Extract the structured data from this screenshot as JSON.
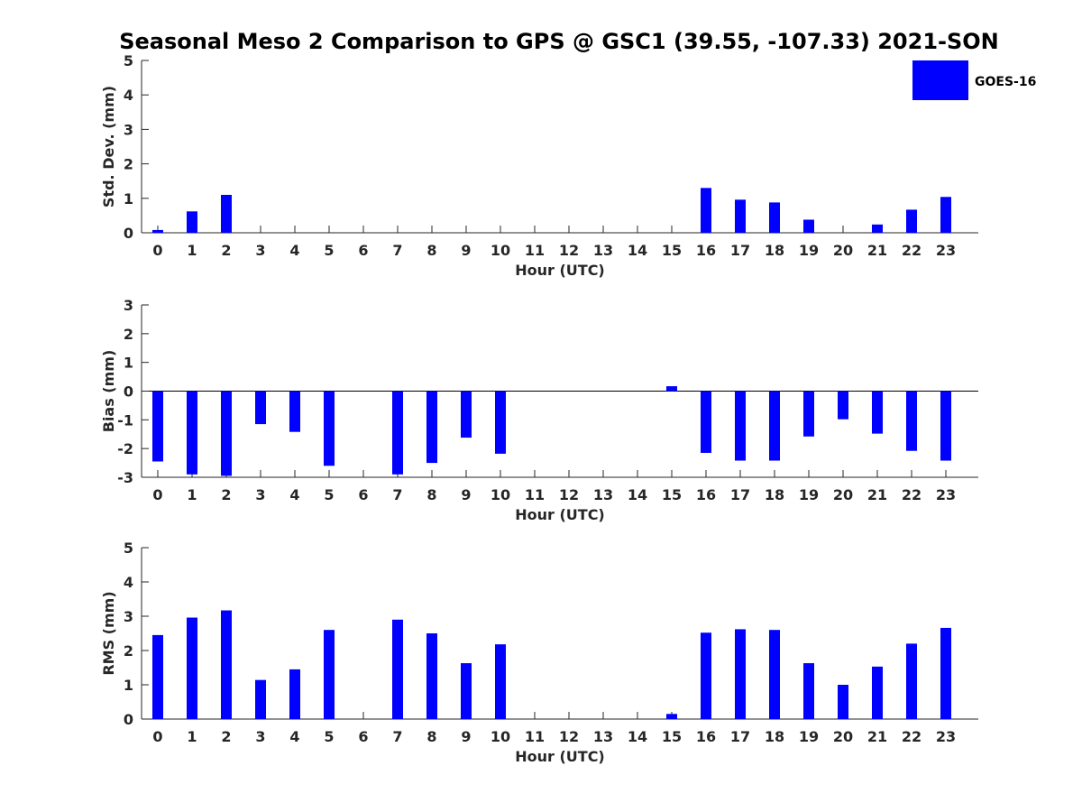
{
  "title": "Seasonal Meso 2 Comparison to GPS @ GSC1 (39.55, -107.33) 2021-SON",
  "legend": {
    "label": "GOES-16",
    "color": "#0000ff",
    "placement": "top-right"
  },
  "chart_data": [
    {
      "type": "bar",
      "categories": [
        "0",
        "1",
        "2",
        "3",
        "4",
        "5",
        "6",
        "7",
        "8",
        "9",
        "10",
        "11",
        "12",
        "13",
        "14",
        "15",
        "16",
        "17",
        "18",
        "19",
        "20",
        "21",
        "22",
        "23"
      ],
      "series": [
        {
          "name": "GOES-16",
          "values": [
            0.08,
            0.62,
            1.1,
            null,
            null,
            null,
            null,
            null,
            null,
            null,
            null,
            null,
            null,
            null,
            null,
            null,
            1.3,
            0.96,
            0.88,
            0.38,
            null,
            0.24,
            0.67,
            1.04
          ]
        }
      ],
      "xlabel": "Hour (UTC)",
      "ylabel": "Std. Dev. (mm)",
      "ylim": [
        0,
        5
      ],
      "yticks": [
        0,
        1,
        2,
        3,
        4,
        5
      ],
      "grid": false
    },
    {
      "type": "bar",
      "categories": [
        "0",
        "1",
        "2",
        "3",
        "4",
        "5",
        "6",
        "7",
        "8",
        "9",
        "10",
        "11",
        "12",
        "13",
        "14",
        "15",
        "16",
        "17",
        "18",
        "19",
        "20",
        "21",
        "22",
        "23"
      ],
      "series": [
        {
          "name": "GOES-16",
          "values": [
            -2.45,
            -2.9,
            -2.95,
            -1.15,
            -1.42,
            -2.6,
            null,
            -2.9,
            -2.5,
            -1.62,
            -2.18,
            null,
            null,
            null,
            null,
            0.17,
            -2.15,
            -2.42,
            -2.42,
            -1.58,
            -0.98,
            -1.48,
            -2.08,
            -2.42
          ]
        }
      ],
      "xlabel": "Hour (UTC)",
      "ylabel": "Bias (mm)",
      "ylim": [
        -3,
        3
      ],
      "yticks": [
        -3,
        -2,
        -1,
        0,
        1,
        2,
        3
      ],
      "grid": false
    },
    {
      "type": "bar",
      "categories": [
        "0",
        "1",
        "2",
        "3",
        "4",
        "5",
        "6",
        "7",
        "8",
        "9",
        "10",
        "11",
        "12",
        "13",
        "14",
        "15",
        "16",
        "17",
        "18",
        "19",
        "20",
        "21",
        "22",
        "23"
      ],
      "series": [
        {
          "name": "GOES-16",
          "values": [
            2.45,
            2.96,
            3.17,
            1.14,
            1.45,
            2.6,
            null,
            2.9,
            2.5,
            1.63,
            2.18,
            null,
            null,
            null,
            null,
            0.15,
            2.52,
            2.62,
            2.6,
            1.63,
            1.0,
            1.53,
            2.2,
            2.66
          ]
        }
      ],
      "xlabel": "Hour (UTC)",
      "ylabel": "RMS (mm)",
      "ylim": [
        0,
        5
      ],
      "yticks": [
        0,
        1,
        2,
        3,
        4,
        5
      ],
      "grid": false
    }
  ]
}
